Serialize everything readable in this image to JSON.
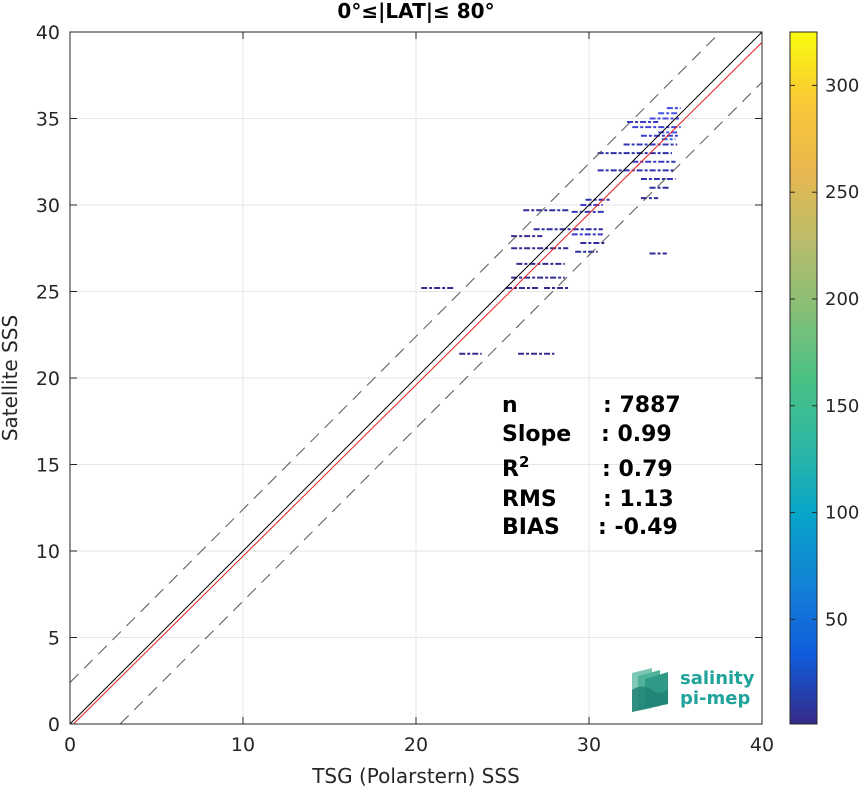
{
  "chart_data": {
    "type": "scatter",
    "title": "0°≤|LAT|≤ 80°",
    "xlabel": "TSG (Polarstern) SSS",
    "ylabel": "Satellite SSS",
    "xlim": [
      0,
      40
    ],
    "ylim": [
      0,
      40
    ],
    "xticks": [
      "0",
      "10",
      "20",
      "30",
      "40"
    ],
    "yticks": [
      "0",
      "5",
      "10",
      "15",
      "20",
      "25",
      "30",
      "35",
      "40"
    ],
    "grid": true,
    "colorbar": {
      "range": [
        1,
        325
      ],
      "ticks": [
        "50",
        "100",
        "150",
        "200",
        "250",
        "300"
      ],
      "colormap": "parula"
    },
    "lines": [
      {
        "kind": "identity",
        "slope": 1,
        "intercept": 0,
        "color": "#000000",
        "style": "solid"
      },
      {
        "kind": "regression",
        "slope": 0.99,
        "intercept": -0.2,
        "color": "#e8201c",
        "style": "solid"
      },
      {
        "kind": "upper-bound",
        "slope": 1,
        "intercept": 2.4,
        "color": "#555555",
        "style": "dashed"
      },
      {
        "kind": "lower-bound",
        "slope": 1,
        "intercept": -2.9,
        "color": "#555555",
        "style": "dashed"
      }
    ],
    "segments": [
      {
        "x1": 20.3,
        "x2": 22.2,
        "y": 25.2,
        "c": 10
      },
      {
        "x1": 25.2,
        "x2": 27.1,
        "y": 25.2,
        "c": 8
      },
      {
        "x1": 27.4,
        "x2": 28.9,
        "y": 25.2,
        "c": 8
      },
      {
        "x1": 22.5,
        "x2": 23.8,
        "y": 21.4,
        "c": 5
      },
      {
        "x1": 25.9,
        "x2": 28.0,
        "y": 21.4,
        "c": 5
      },
      {
        "x1": 25.5,
        "x2": 28.6,
        "y": 25.8,
        "c": 8
      },
      {
        "x1": 25.5,
        "x2": 28.8,
        "y": 27.5,
        "c": 6
      },
      {
        "x1": 25.8,
        "x2": 28.6,
        "y": 26.6,
        "c": 6
      },
      {
        "x1": 25.5,
        "x2": 27.3,
        "y": 28.2,
        "c": 6
      },
      {
        "x1": 26.8,
        "x2": 30.8,
        "y": 28.6,
        "c": 15
      },
      {
        "x1": 29.0,
        "x2": 30.8,
        "y": 28.3,
        "c": 30
      },
      {
        "x1": 29.0,
        "x2": 30.9,
        "y": 29.6,
        "c": 25
      },
      {
        "x1": 29.5,
        "x2": 30.8,
        "y": 30.0,
        "c": 35
      },
      {
        "x1": 29.8,
        "x2": 31.2,
        "y": 30.3,
        "c": 20
      },
      {
        "x1": 26.2,
        "x2": 28.9,
        "y": 29.7,
        "c": 10
      },
      {
        "x1": 29.2,
        "x2": 30.5,
        "y": 27.3,
        "c": 12
      },
      {
        "x1": 29.5,
        "x2": 31.0,
        "y": 27.8,
        "c": 10
      },
      {
        "x1": 33.5,
        "x2": 34.5,
        "y": 27.2,
        "c": 8
      },
      {
        "x1": 33.0,
        "x2": 34.0,
        "y": 30.4,
        "c": 10
      },
      {
        "x1": 30.5,
        "x2": 35.0,
        "y": 32.0,
        "c": 20
      },
      {
        "x1": 30.5,
        "x2": 34.8,
        "y": 33.0,
        "c": 18
      },
      {
        "x1": 32.5,
        "x2": 35.0,
        "y": 32.5,
        "c": 30
      },
      {
        "x1": 33.0,
        "x2": 35.0,
        "y": 31.5,
        "c": 22
      },
      {
        "x1": 32.0,
        "x2": 35.1,
        "y": 33.5,
        "c": 25
      },
      {
        "x1": 33.0,
        "x2": 35.2,
        "y": 34.0,
        "c": 35
      },
      {
        "x1": 32.5,
        "x2": 35.3,
        "y": 34.5,
        "c": 40
      },
      {
        "x1": 33.5,
        "x2": 35.2,
        "y": 35.0,
        "c": 50
      },
      {
        "x1": 34.0,
        "x2": 35.1,
        "y": 35.3,
        "c": 60
      },
      {
        "x1": 32.2,
        "x2": 34.0,
        "y": 34.8,
        "c": 30
      },
      {
        "x1": 34.2,
        "x2": 35.0,
        "y": 33.8,
        "c": 70
      },
      {
        "x1": 34.0,
        "x2": 35.2,
        "y": 34.2,
        "c": 55
      },
      {
        "x1": 34.5,
        "x2": 35.3,
        "y": 35.6,
        "c": 45
      },
      {
        "x1": 33.5,
        "x2": 34.6,
        "y": 31.0,
        "c": 12
      }
    ],
    "stats": [
      {
        "label": "n",
        "value": ": 7887"
      },
      {
        "label": "Slope",
        "value": ": 0.99"
      },
      {
        "label": "R",
        "sup": "2",
        "value": ": 0.79"
      },
      {
        "label": "RMS",
        "value": ": 1.13"
      },
      {
        "label": "BIAS",
        "value": ": -0.49"
      }
    ]
  },
  "logo": {
    "line1": "salinity",
    "line2": "pi-mep"
  }
}
